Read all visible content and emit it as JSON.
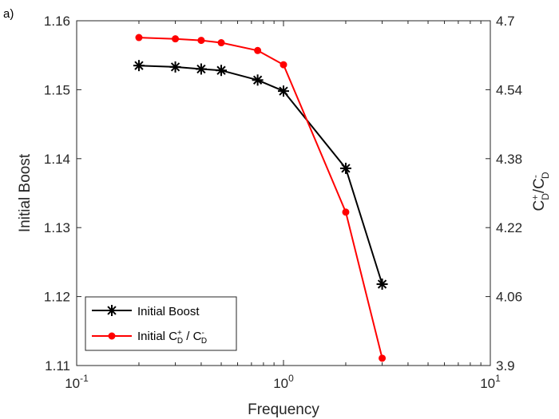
{
  "chart_data": {
    "type": "line",
    "panel_label": "a)",
    "xlabel": "Frequency",
    "ylabel_left": "Initial Boost",
    "ylabel_right": {
      "base1": "C",
      "sup1": "+",
      "sub1": "D",
      "sep": "/",
      "base2": "C",
      "sup2": "-",
      "sub2": "D"
    },
    "xscale": "log",
    "xlim": [
      0.1,
      10
    ],
    "x_ticks": [
      {
        "value": 0.1,
        "base": "10",
        "exp": "-1"
      },
      {
        "value": 1,
        "base": "10",
        "exp": "0"
      },
      {
        "value": 10,
        "base": "10",
        "exp": "1"
      }
    ],
    "ylim_left": [
      1.11,
      1.16
    ],
    "yticks_left": [
      "1.11",
      "1.12",
      "1.13",
      "1.14",
      "1.15",
      "1.16"
    ],
    "ylim_right": [
      3.9,
      4.7
    ],
    "yticks_right": [
      "3.9",
      "4.06",
      "4.22",
      "4.38",
      "4.54",
      "4.7"
    ],
    "grid": false,
    "legend_position": "bottom-left",
    "series": [
      {
        "name": "Initial Boost",
        "legend": {
          "text": "Initial Boost"
        },
        "axis": "left",
        "color": "#000000",
        "marker": "asterisk",
        "x": [
          0.2,
          0.3,
          0.4,
          0.5,
          0.75,
          1.0,
          2.0,
          3.0
        ],
        "y": [
          1.1535,
          1.1533,
          1.153,
          1.1528,
          1.1514,
          1.1498,
          1.1386,
          1.1218
        ]
      },
      {
        "name": "Initial C_D+ / C_D-",
        "legend": {
          "prefix": "Initial ",
          "base1": "C",
          "sup1": "+",
          "sub1": "D",
          "sep": " / ",
          "base2": "C",
          "sup2": "-",
          "sub2": "D"
        },
        "axis": "right",
        "color": "#ff0000",
        "marker": "dot",
        "x": [
          0.2,
          0.3,
          0.4,
          0.5,
          0.75,
          1.0,
          2.0,
          3.0
        ],
        "y": [
          4.661,
          4.658,
          4.6545,
          4.649,
          4.631,
          4.598,
          4.256,
          3.917
        ]
      }
    ]
  }
}
